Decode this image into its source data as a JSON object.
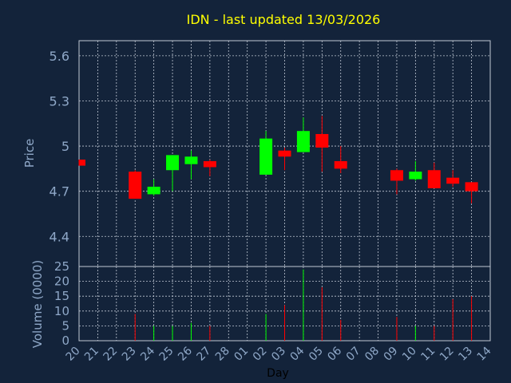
{
  "chart_data": {
    "type": "candlestick",
    "title": "IDN - last updated 13/03/2026",
    "xlabel": "Day",
    "ylabel_price": "Price",
    "ylabel_volume": "Volume (0000)",
    "price_ylim": [
      4.2,
      5.7
    ],
    "price_ticks": [
      "5.6",
      "5.3",
      "5",
      "4.7",
      "4.4"
    ],
    "price_tick_values": [
      5.6,
      5.3,
      5.0,
      4.7,
      4.4
    ],
    "volume_ylim": [
      0,
      25
    ],
    "volume_ticks": [
      "25",
      "20",
      "15",
      "10",
      "5",
      "0"
    ],
    "volume_tick_values": [
      25,
      20,
      15,
      10,
      5,
      0
    ],
    "x_labels": [
      "20",
      "21",
      "22",
      "23",
      "24",
      "25",
      "26",
      "27",
      "28",
      "01",
      "02",
      "03",
      "04",
      "05",
      "06",
      "07",
      "08",
      "09",
      "10",
      "11",
      "12",
      "13",
      "14"
    ],
    "grid": true,
    "colors": {
      "background": "#13233a",
      "text": "#8fa8c8",
      "title": "#ffff00",
      "grid": "#c0c8d4",
      "up": "#00ff00",
      "down": "#ff0000"
    },
    "candles": [
      {
        "day": "20",
        "open": 4.91,
        "high": 4.91,
        "low": 4.87,
        "close": 4.87,
        "volume": 0
      },
      {
        "day": "23",
        "open": 4.83,
        "high": 4.84,
        "low": 4.65,
        "close": 4.65,
        "volume": 9
      },
      {
        "day": "24",
        "open": 4.68,
        "high": 4.78,
        "low": 4.67,
        "close": 4.73,
        "volume": 5
      },
      {
        "day": "25",
        "open": 4.84,
        "high": 4.94,
        "low": 4.7,
        "close": 4.94,
        "volume": 5
      },
      {
        "day": "26",
        "open": 4.88,
        "high": 4.97,
        "low": 4.78,
        "close": 4.93,
        "volume": 6
      },
      {
        "day": "27",
        "open": 4.9,
        "high": 4.91,
        "low": 4.8,
        "close": 4.86,
        "volume": 5
      },
      {
        "day": "02",
        "open": 4.81,
        "high": 5.1,
        "low": 4.81,
        "close": 5.05,
        "volume": 9
      },
      {
        "day": "03",
        "open": 4.97,
        "high": 4.99,
        "low": 4.84,
        "close": 4.93,
        "volume": 12
      },
      {
        "day": "04",
        "open": 4.96,
        "high": 5.19,
        "low": 4.96,
        "close": 5.1,
        "volume": 24
      },
      {
        "day": "05",
        "open": 5.08,
        "high": 5.2,
        "low": 4.83,
        "close": 4.99,
        "volume": 18
      },
      {
        "day": "06",
        "open": 4.9,
        "high": 5.0,
        "low": 4.82,
        "close": 4.85,
        "volume": 7
      },
      {
        "day": "09",
        "open": 4.84,
        "high": 4.85,
        "low": 4.68,
        "close": 4.77,
        "volume": 8
      },
      {
        "day": "10",
        "open": 4.78,
        "high": 4.9,
        "low": 4.77,
        "close": 4.83,
        "volume": 5
      },
      {
        "day": "11",
        "open": 4.84,
        "high": 4.89,
        "low": 4.72,
        "close": 4.72,
        "volume": 5
      },
      {
        "day": "12",
        "open": 4.79,
        "high": 4.84,
        "low": 4.73,
        "close": 4.75,
        "volume": 14
      },
      {
        "day": "13",
        "open": 4.76,
        "high": 4.76,
        "low": 4.62,
        "close": 4.7,
        "volume": 15
      }
    ]
  }
}
